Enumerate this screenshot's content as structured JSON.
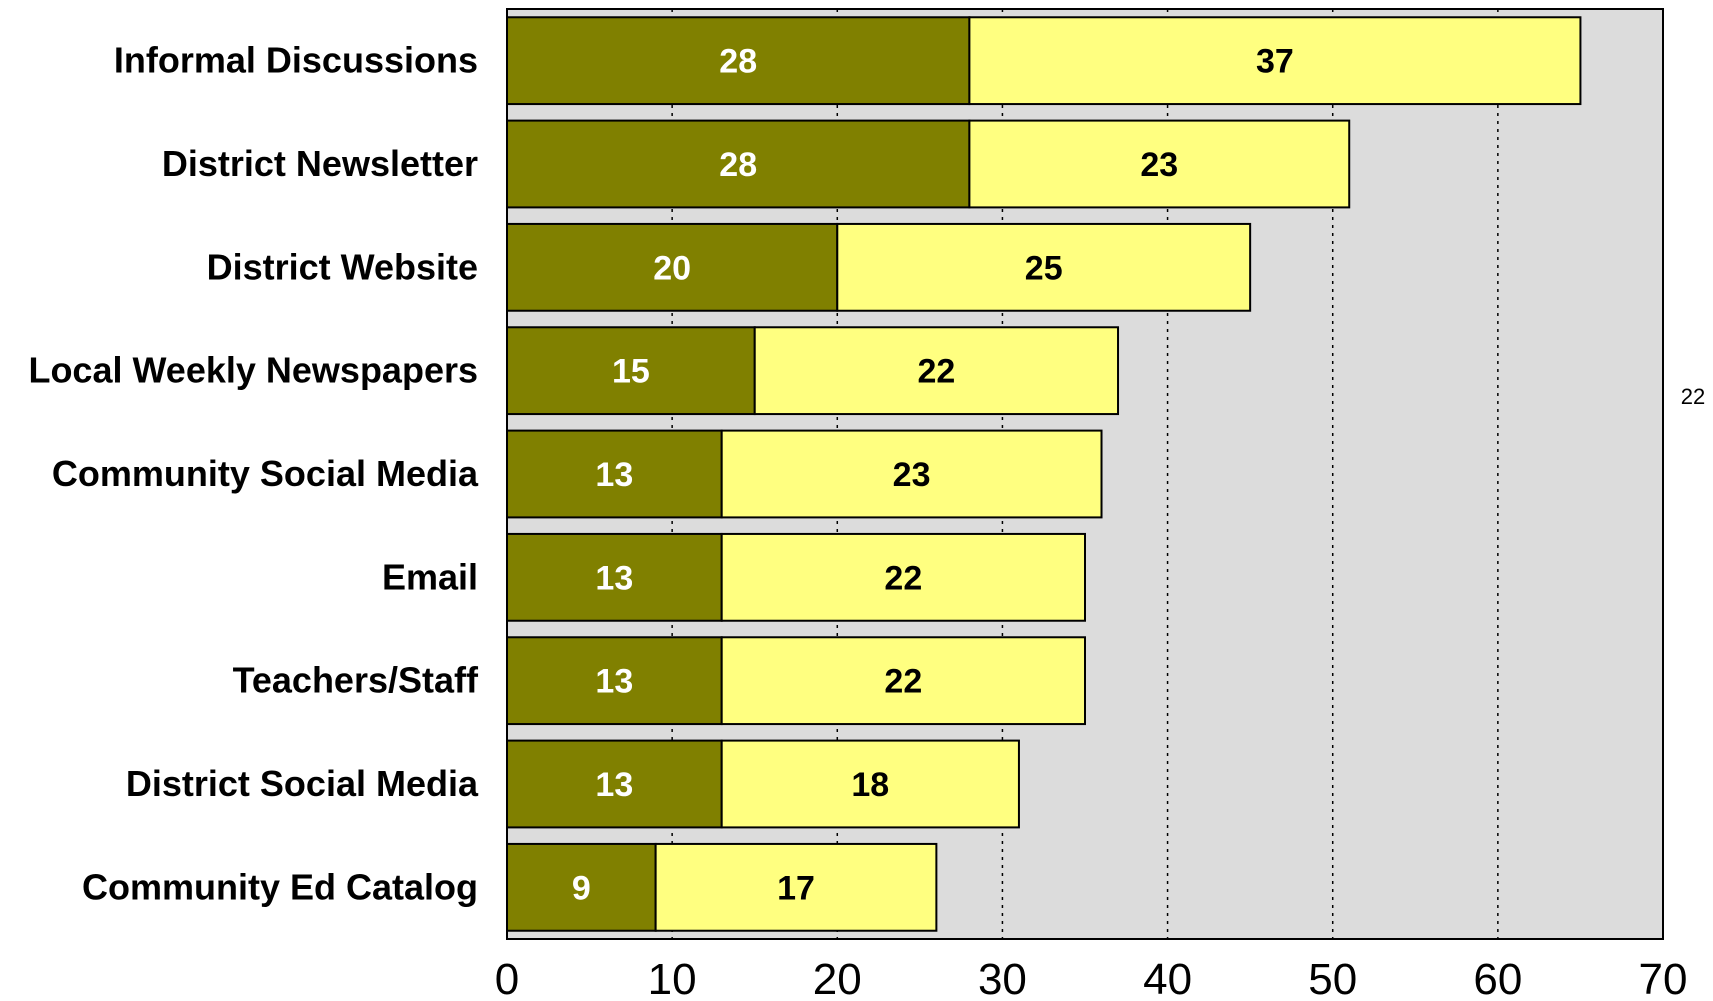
{
  "chart_data": {
    "type": "bar",
    "orientation": "horizontal",
    "stacked": true,
    "categories": [
      "Informal Discussions",
      "District Newsletter",
      "District Website",
      "Local Weekly Newspapers",
      "Community Social Media",
      "Email",
      "Teachers/Staff",
      "District Social Media",
      "Community Ed Catalog"
    ],
    "series": [
      {
        "values": [
          28,
          28,
          20,
          15,
          13,
          13,
          13,
          13,
          9
        ],
        "color": "#808000",
        "label_color": "#ffffff"
      },
      {
        "values": [
          37,
          23,
          25,
          22,
          23,
          22,
          22,
          18,
          17
        ],
        "color": "#ffff80",
        "label_color": "#000000"
      }
    ],
    "xlim": [
      0,
      70
    ],
    "xticks": [
      "0",
      "10",
      "20",
      "30",
      "40",
      "50",
      "60",
      "70"
    ],
    "grid": true,
    "plot_background": "#dcdcdc",
    "annotation": "22",
    "title": "",
    "xlabel": "",
    "ylabel": ""
  }
}
